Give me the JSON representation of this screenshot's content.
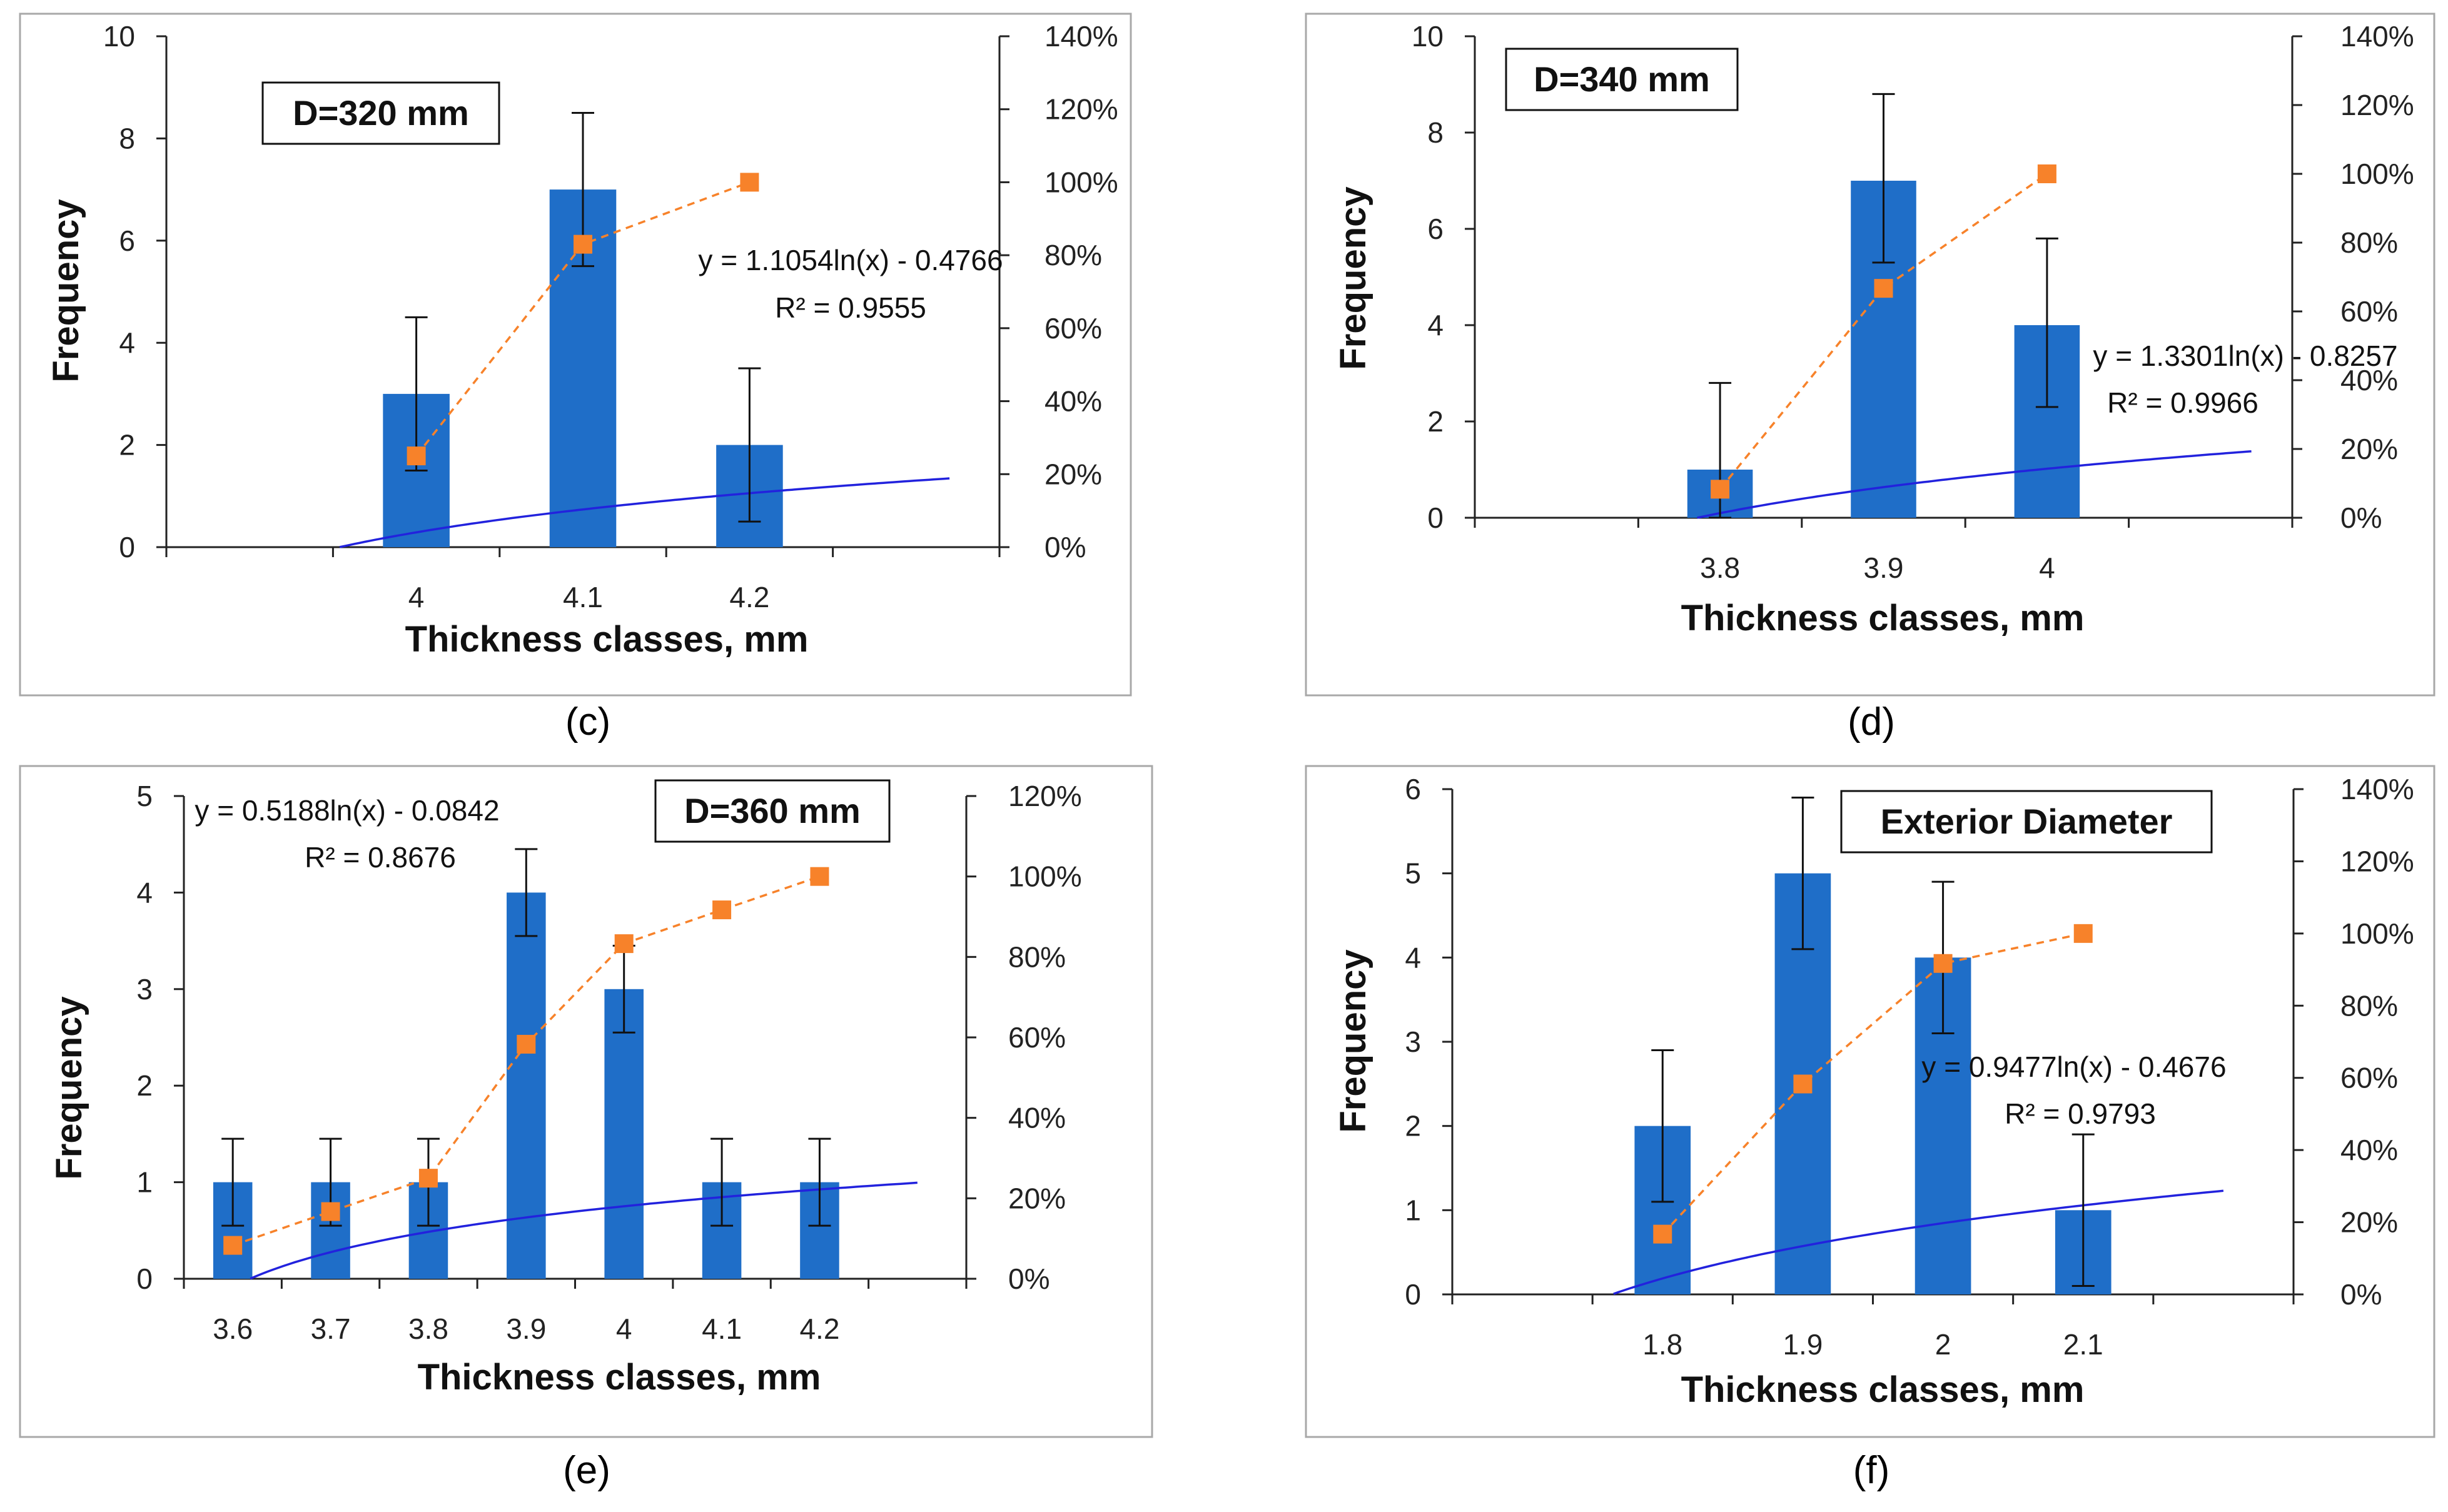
{
  "colors": {
    "bar": "#1f6ec8",
    "cumulative": "#f7822a",
    "trend": "#2222dd",
    "axis": "#222222",
    "frame": "#a8a8a8"
  },
  "chart_data": [
    {
      "type": "bar",
      "panel_label": "(c)",
      "title": "D=320 mm",
      "xlabel": "Thickness classes, mm",
      "ylabel": "Frequency",
      "categories": [
        "",
        "4",
        "4.1",
        "4.2",
        ""
      ],
      "values": [
        null,
        3,
        7,
        2,
        null
      ],
      "error_bars": [
        null,
        [
          1.5,
          4.5
        ],
        [
          5.5,
          8.5
        ],
        [
          0.5,
          3.5
        ],
        null
      ],
      "ylim": [
        0,
        10
      ],
      "yticks": [
        0,
        2,
        4,
        6,
        8,
        10
      ],
      "y2lim": [
        0,
        1.4
      ],
      "y2ticks": [
        "0%",
        "20%",
        "40%",
        "60%",
        "80%",
        "100%",
        "120%",
        "140%"
      ],
      "cumulative_percent": [
        null,
        0.25,
        0.83,
        1.0,
        null
      ],
      "trendline": {
        "a": 1.1054,
        "b": -0.4766,
        "x_start": 1.54,
        "x_end": 5.2
      },
      "equation": "y = 1.1054ln(x) - 0.4766",
      "r2": "R² = 0.9555"
    },
    {
      "type": "bar",
      "panel_label": "(d)",
      "title": "D=340 mm",
      "xlabel": "Thickness classes, mm",
      "ylabel": "Frequency",
      "categories": [
        "",
        "3.8",
        "3.9",
        "4",
        ""
      ],
      "values": [
        null,
        1,
        7,
        4,
        null
      ],
      "error_bars": [
        null,
        [
          0,
          2.8
        ],
        [
          5.3,
          8.8
        ],
        [
          2.3,
          5.8
        ],
        null
      ],
      "ylim": [
        0,
        10
      ],
      "yticks": [
        0,
        2,
        4,
        6,
        8,
        10
      ],
      "y2lim": [
        0,
        1.4
      ],
      "y2ticks": [
        "0%",
        "20%",
        "40%",
        "60%",
        "80%",
        "100%",
        "120%",
        "140%"
      ],
      "cumulative_percent": [
        null,
        0.083,
        0.667,
        1.0,
        null
      ],
      "trendline": {
        "a": 1.3301,
        "b": -0.8257,
        "x_start": 1.86,
        "x_end": 5.25
      },
      "equation": "y = 1.3301ln(x) - 0.8257",
      "r2": "R² = 0.9966"
    },
    {
      "type": "bar",
      "panel_label": "(e)",
      "title": "D=360 mm",
      "xlabel": "Thickness classes, mm",
      "ylabel": "Frequency",
      "categories": [
        "3.6",
        "3.7",
        "3.8",
        "3.9",
        "4",
        "4.1",
        "4.2",
        ""
      ],
      "values": [
        1,
        1,
        1,
        4,
        3,
        1,
        1,
        null
      ],
      "error_bars": [
        [
          0.55,
          1.45
        ],
        [
          0.55,
          1.45
        ],
        [
          0.55,
          1.45
        ],
        [
          3.55,
          4.45
        ],
        [
          2.55,
          3.45
        ],
        [
          0.55,
          1.45
        ],
        [
          0.55,
          1.45
        ],
        null
      ],
      "ylim": [
        0,
        5
      ],
      "yticks": [
        0,
        1,
        2,
        3,
        4,
        5
      ],
      "y2lim": [
        0,
        1.2
      ],
      "y2ticks": [
        "0%",
        "20%",
        "40%",
        "60%",
        "80%",
        "100%",
        "120%"
      ],
      "cumulative_percent": [
        0.083,
        0.167,
        0.25,
        0.583,
        0.833,
        0.917,
        1.0,
        null
      ],
      "trendline": {
        "a": 0.5188,
        "b": -0.0842,
        "x_start": 1.18,
        "x_end": 8.0
      },
      "equation": "y = 0.5188ln(x) - 0.0842",
      "r2": "R² = 0.8676"
    },
    {
      "type": "bar",
      "panel_label": "(f)",
      "title": "Exterior Diameter",
      "xlabel": "Thickness classes, mm",
      "ylabel": "Frequency",
      "categories": [
        "",
        "1.8",
        "1.9",
        "2",
        "2.1",
        ""
      ],
      "values": [
        null,
        2,
        5,
        4,
        1,
        null
      ],
      "error_bars": [
        null,
        [
          1.1,
          2.9
        ],
        [
          4.1,
          5.9
        ],
        [
          3.1,
          4.9
        ],
        [
          0.1,
          1.9
        ],
        null
      ],
      "ylim": [
        0,
        6
      ],
      "yticks": [
        0,
        1,
        2,
        3,
        4,
        5,
        6
      ],
      "y2lim": [
        0,
        1.4
      ],
      "y2ticks": [
        "0%",
        "20%",
        "40%",
        "60%",
        "80%",
        "100%",
        "120%",
        "140%"
      ],
      "cumulative_percent": [
        null,
        0.167,
        0.583,
        0.917,
        1.0,
        null
      ],
      "trendline": {
        "a": 0.9477,
        "b": -0.4676,
        "x_start": 1.65,
        "x_end": 6.0
      },
      "equation": "y = 0.9477ln(x) - 0.4676",
      "r2": "R² = 0.9793"
    }
  ]
}
